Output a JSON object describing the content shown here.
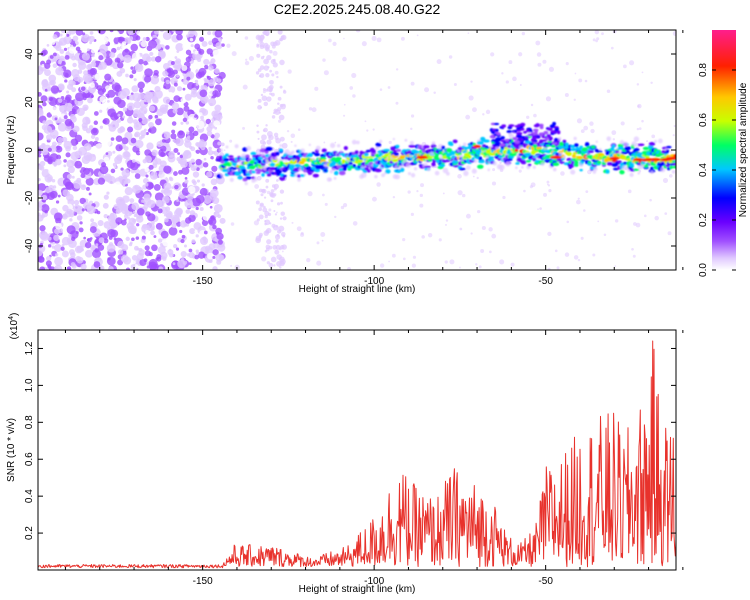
{
  "figure_title": "C2E2.2025.245.08.40.G22",
  "chart_data": [
    {
      "type": "heatmap",
      "title": "C2E2.2025.245.08.40.G22",
      "xlabel": "Height of straight line (km)",
      "ylabel": "Frequency (Hz)",
      "xlim": [
        -198,
        -12
      ],
      "ylim": [
        -50,
        50
      ],
      "xticks": [
        -150,
        -100,
        -50
      ],
      "yticks": [
        -40,
        -20,
        0,
        20,
        40
      ],
      "xtick_labels": [
        "-150",
        "-100",
        "-50"
      ],
      "ytick_labels": [
        "-40",
        "-20",
        "0",
        "20",
        "40"
      ],
      "colorbar": {
        "label": "Normalized spectral amplitude",
        "range": [
          0,
          0.96
        ],
        "ticks": [
          0.0,
          0.2,
          0.4,
          0.6,
          0.8
        ],
        "tick_labels": [
          "0.0",
          "0.2",
          "0.4",
          "0.6",
          "0.8"
        ],
        "colors": [
          "#ffffff",
          "#e0c8ff",
          "#a050ff",
          "#6a00ff",
          "#0000ff",
          "#00c8ff",
          "#00ff64",
          "#c8ff00",
          "#ffc800",
          "#ff2000",
          "#ff1e8c"
        ]
      },
      "signal_track": [
        {
          "x": -145,
          "f": -6.5
        },
        {
          "x": -130,
          "f": -5.8
        },
        {
          "x": -115,
          "f": -4.8
        },
        {
          "x": -100,
          "f": -3.8
        },
        {
          "x": -85,
          "f": -2.6
        },
        {
          "x": -72,
          "f": -1.8
        },
        {
          "x": -60,
          "f": -0.5
        },
        {
          "x": -50,
          "f": 0
        },
        {
          "x": -40,
          "f": -2.5
        },
        {
          "x": -30,
          "f": -3.2
        },
        {
          "x": -12,
          "f": -3.8
        }
      ],
      "noise_region_xmax": -144
    },
    {
      "type": "line",
      "xlabel": "Height of straight line (km)",
      "ylabel": "SNR (10 * v/v)",
      "scale_label": "(x10",
      "scale_exponent": "4",
      "scale_suffix": ")",
      "xlim": [
        -198,
        -12
      ],
      "ylim": [
        0,
        1.3
      ],
      "xticks": [
        -150,
        -100,
        -50
      ],
      "yticks": [
        0.2,
        0.4,
        0.6,
        0.8,
        1.0,
        1.2
      ],
      "xtick_labels": [
        "-150",
        "-100",
        "-50"
      ],
      "ytick_labels": [
        "0.2",
        "0.4",
        "0.6",
        "0.8",
        "1.0",
        "1.2"
      ],
      "series": [
        {
          "name": "SNR",
          "color": "#e8322c",
          "envelope": [
            {
              "x": -198,
              "y": 0.03
            },
            {
              "x": -144,
              "y": 0.03
            },
            {
              "x": -141,
              "y": 0.12
            },
            {
              "x": -130,
              "y": 0.12
            },
            {
              "x": -118,
              "y": 0.05
            },
            {
              "x": -108,
              "y": 0.11
            },
            {
              "x": -100,
              "y": 0.28
            },
            {
              "x": -96,
              "y": 0.44
            },
            {
              "x": -93,
              "y": 0.56
            },
            {
              "x": -88,
              "y": 0.44
            },
            {
              "x": -82,
              "y": 0.38
            },
            {
              "x": -77,
              "y": 0.55
            },
            {
              "x": -72,
              "y": 0.48
            },
            {
              "x": -66,
              "y": 0.4
            },
            {
              "x": -61,
              "y": 0.17
            },
            {
              "x": -57,
              "y": 0.13
            },
            {
              "x": -53,
              "y": 0.22
            },
            {
              "x": -50,
              "y": 0.55
            },
            {
              "x": -45,
              "y": 0.62
            },
            {
              "x": -40,
              "y": 0.75
            },
            {
              "x": -35,
              "y": 0.82
            },
            {
              "x": -30,
              "y": 0.85
            },
            {
              "x": -27,
              "y": 0.72
            },
            {
              "x": -21,
              "y": 0.95
            },
            {
              "x": -19,
              "y": 1.28
            },
            {
              "x": -16,
              "y": 0.8
            },
            {
              "x": -12,
              "y": 0.8
            }
          ]
        }
      ]
    }
  ]
}
